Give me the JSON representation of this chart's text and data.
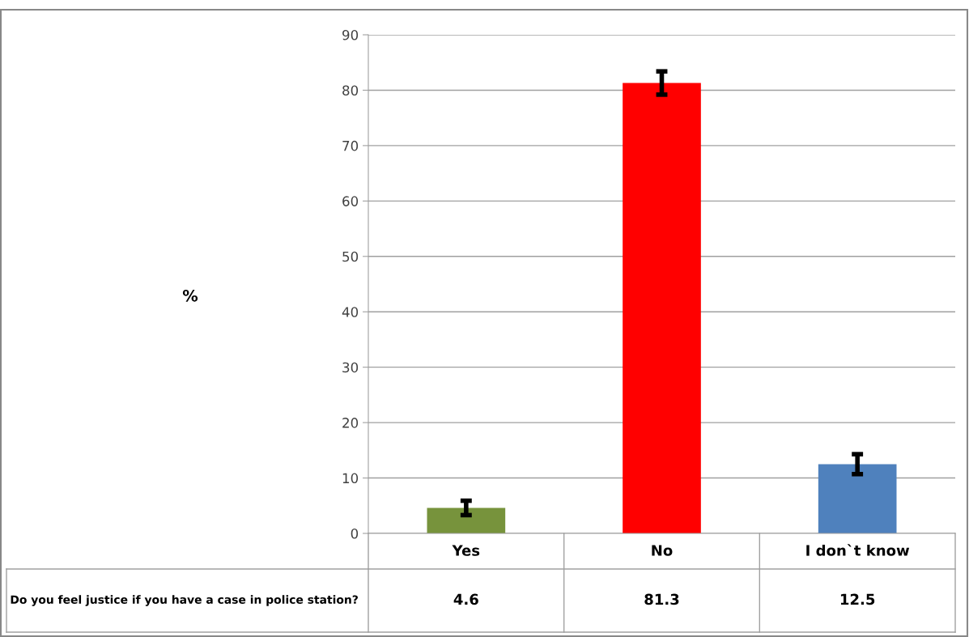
{
  "chart_data": {
    "type": "bar",
    "annotations": [
      "%"
    ],
    "categories": [
      "Yes",
      "No",
      "I don`t know"
    ],
    "series": [
      {
        "name": "Do you feel justice if you have a case in police station?",
        "colors": [
          "#77933c",
          "#ff0000",
          "#4f81bd"
        ],
        "values": [
          4.6,
          81.3,
          12.5
        ],
        "errors": [
          1.3,
          2.1,
          1.8
        ]
      }
    ],
    "ylim": [
      0,
      90
    ],
    "yticks": [
      0,
      10,
      20,
      30,
      40,
      50,
      60,
      70,
      80,
      90
    ],
    "grid": "y",
    "data_labels": true
  }
}
